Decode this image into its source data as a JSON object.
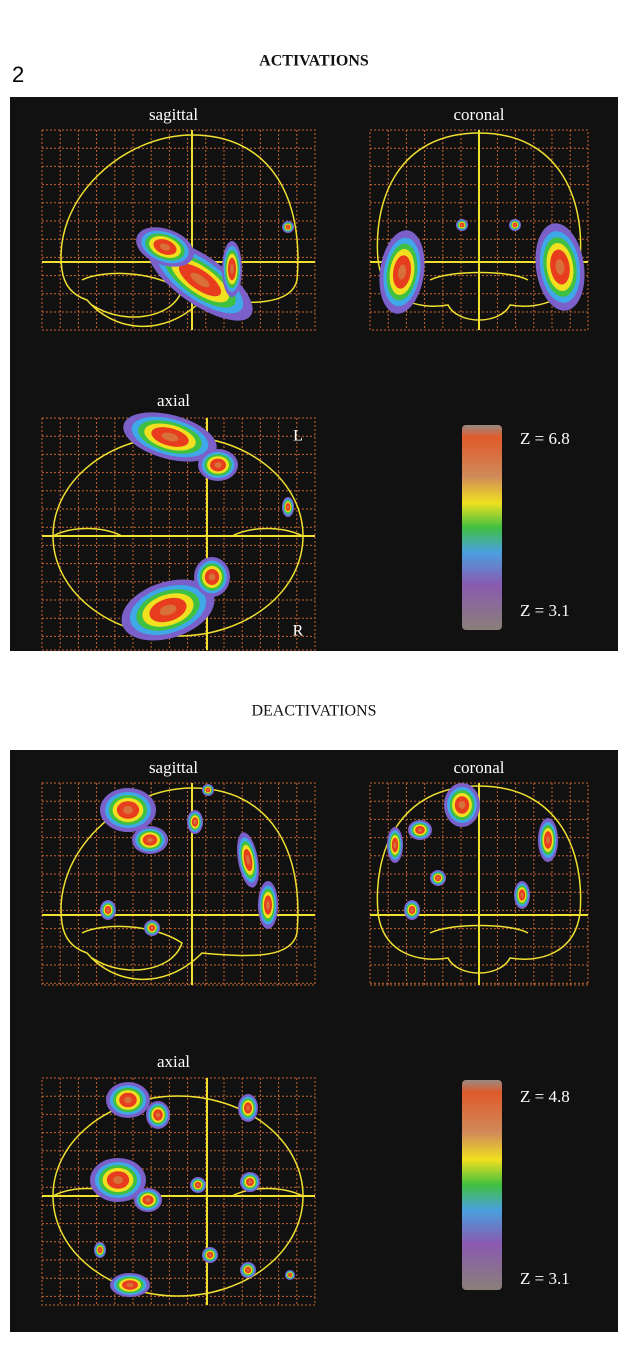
{
  "figure_number": "2",
  "panels": [
    {
      "title": "ACTIVATIONS",
      "views": [
        "sagittal",
        "coronal",
        "axial"
      ],
      "orientation": {
        "left": "L",
        "right": "R"
      },
      "scale": {
        "max": "Z = 6.8",
        "min": "Z = 3.1"
      }
    },
    {
      "title": "DEACTIVATIONS",
      "views": [
        "sagittal",
        "coronal",
        "axial"
      ],
      "scale": {
        "max": "Z = 4.8",
        "min": "Z = 3.1"
      }
    }
  ]
}
